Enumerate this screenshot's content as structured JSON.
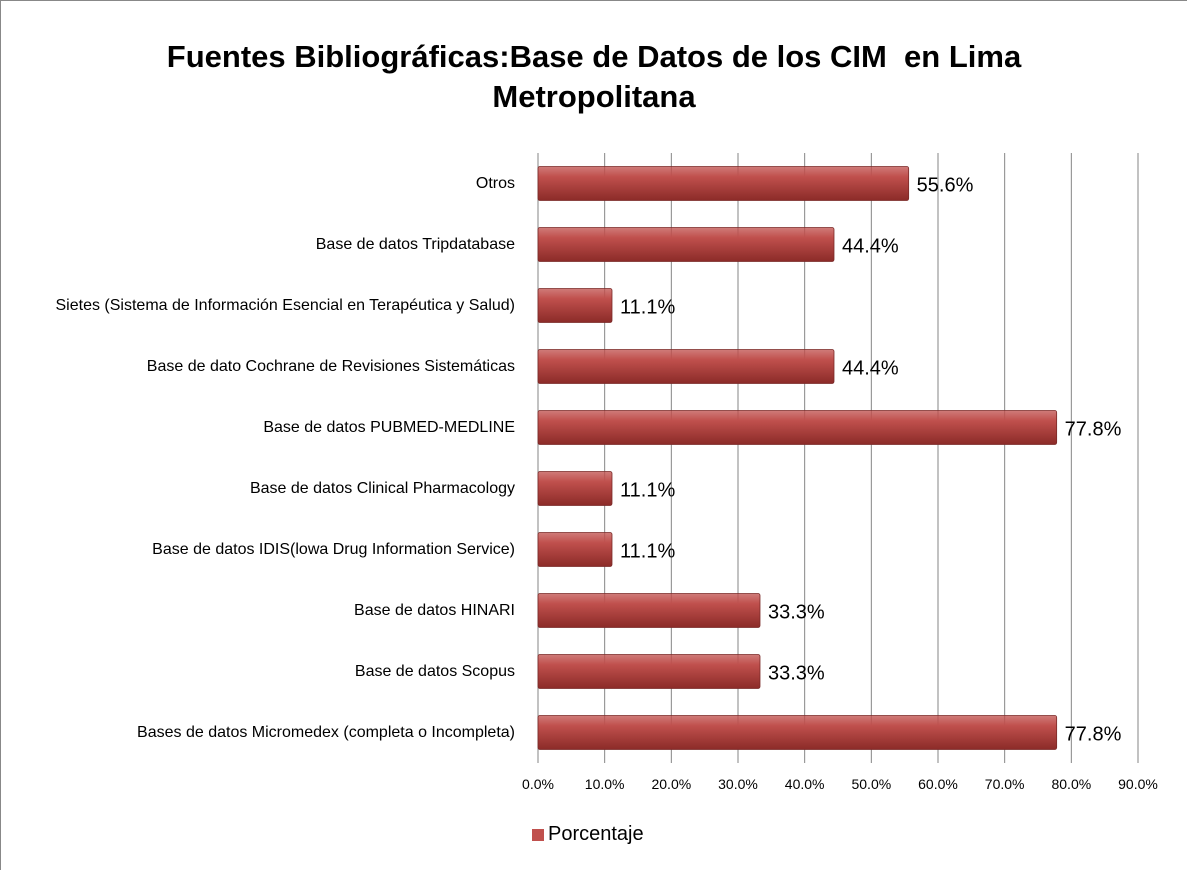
{
  "chart_data": {
    "type": "bar",
    "orientation": "horizontal",
    "title": "Fuentes Bibliográficas:Base de Datos de los CIM  en Lima Metropolitana",
    "categories": [
      "Otros",
      "Base de datos Tripdatabase",
      "Sietes (Sistema de Información Esencial en Terapéutica y Salud)",
      "Base de dato Cochrane de Revisiones Sistemáticas",
      "Base de datos PUBMED-MEDLINE",
      "Base de datos Clinical Pharmacology",
      "Base de datos IDIS(lowa Drug Information Service)",
      "Base de datos HINARI",
      "Base de datos Scopus",
      "Bases de datos Micromedex (completa o Incompleta)"
    ],
    "series": [
      {
        "name": "Porcentaje",
        "color": "#c0504d",
        "values": [
          55.6,
          44.4,
          11.1,
          44.4,
          77.8,
          11.1,
          11.1,
          33.3,
          33.3,
          77.8
        ],
        "value_labels": [
          "55.6%",
          "44.4%",
          "11.1%",
          "44.4%",
          "77.8%",
          "11.1%",
          "11.1%",
          "33.3%",
          "33.3%",
          "77.8%"
        ]
      }
    ],
    "xlim": [
      0,
      90
    ],
    "xticks": [
      {
        "value": 0,
        "label": "0.0%"
      },
      {
        "value": 10,
        "label": "10.0%"
      },
      {
        "value": 20,
        "label": "20.0%"
      },
      {
        "value": 30,
        "label": "30.0%"
      },
      {
        "value": 40,
        "label": "40.0%"
      },
      {
        "value": 50,
        "label": "50.0%"
      },
      {
        "value": 60,
        "label": "60.0%"
      },
      {
        "value": 70,
        "label": "70.0%"
      },
      {
        "value": 80,
        "label": "80.0%"
      },
      {
        "value": 90,
        "label": "90.0%"
      }
    ],
    "grid": true,
    "legend": "bottom"
  }
}
